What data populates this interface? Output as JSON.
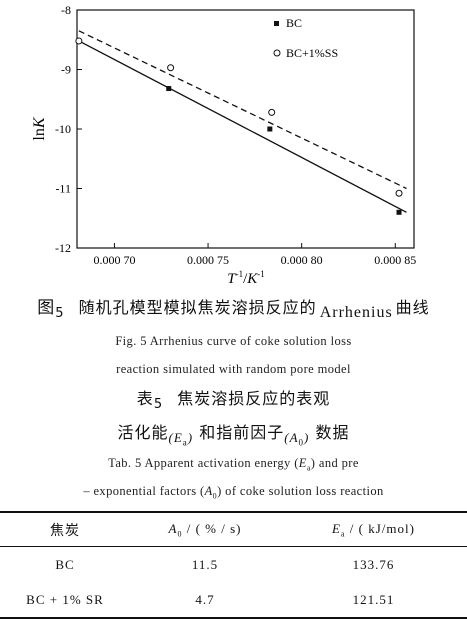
{
  "chart_data": {
    "type": "scatter",
    "xlabel": "T-1/K-1",
    "ylabel": "lnK",
    "xlim": [
      0.00068,
      0.00086
    ],
    "ylim": [
      -12,
      -8
    ],
    "x_ticks": [
      0.0007,
      0.00075,
      0.0008,
      0.00085
    ],
    "x_tick_labels": [
      "0.000 70",
      "0.000 75",
      "0.000 80",
      "0.000 85"
    ],
    "y_ticks": [
      -12,
      -11,
      -10,
      -9,
      -8
    ],
    "y_tick_labels": [
      "-12",
      "-11",
      "-10",
      "-9",
      "-8"
    ],
    "legend_position": "top-right",
    "series": [
      {
        "name": "BC",
        "marker": "filled-square",
        "line": "solid",
        "x": [
          0.000681,
          0.000729,
          0.000783,
          0.000852
        ],
        "y": [
          -8.52,
          -9.32,
          -10.0,
          -11.4
        ],
        "fit": {
          "x": [
            0.000681,
            0.000856
          ],
          "y": [
            -8.52,
            -11.4
          ]
        }
      },
      {
        "name": "BC+1%SS",
        "marker": "open-circle",
        "line": "dashed",
        "x": [
          0.000681,
          0.00073,
          0.000784,
          0.000852
        ],
        "y": [
          -8.52,
          -8.97,
          -9.72,
          -11.08
        ],
        "fit": {
          "x": [
            0.000681,
            0.000856
          ],
          "y": [
            -8.35,
            -11.0
          ]
        }
      }
    ]
  },
  "figure_caption": {
    "cn_label": "图",
    "cn_number": "5",
    "cn_text": "随机孔模型模拟焦炭溶损反应的",
    "cn_term": "Arrhenius",
    "cn_tail": "曲线",
    "en_line1": "Fig. 5   Arrhenius curve of coke solution loss",
    "en_line2": "reaction simulated with random pore model"
  },
  "table_caption": {
    "cn_label": "表",
    "cn_number": "5",
    "cn_line1": "焦炭溶损反应的表观",
    "cn_line2_a": "活化能",
    "cn_line2_b": "和指前因子",
    "cn_line2_c": "数据",
    "sym_E": "E",
    "sym_E_sub": "a",
    "sym_A": "A",
    "sym_A_sub": "0",
    "en_line1_a": "Tab. 5   Apparent activation energy (",
    "en_line1_b": ")  and pre",
    "en_line2_a": "– exponential factors (",
    "en_line2_b": ")  of coke solution loss reaction"
  },
  "table": {
    "headers": [
      "焦炭",
      "A0/(%/s)",
      "Ea/(kJ/mol)"
    ],
    "header_col1": "焦炭",
    "header_col2_sym": "A",
    "header_col2_sub": "0",
    "header_col2_unit": " / ( % / s)",
    "header_col3_sym": "E",
    "header_col3_sub": "a",
    "header_col3_unit": " / ( kJ/mol)",
    "rows": [
      {
        "coke": "BC",
        "a0": "11.5",
        "ea": "133.76"
      },
      {
        "coke": "BC + 1% SR",
        "a0": "4.7",
        "ea": "121.51"
      }
    ]
  }
}
